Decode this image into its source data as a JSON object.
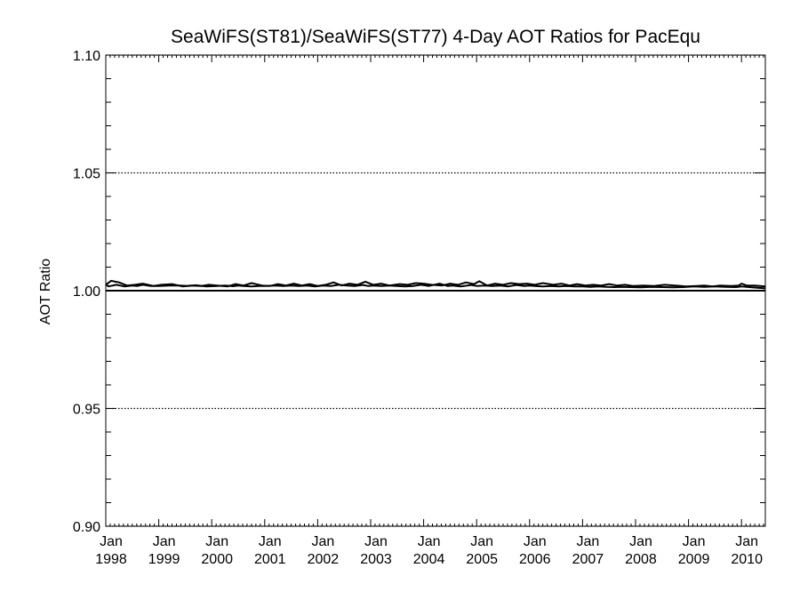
{
  "chart_data": {
    "type": "line",
    "title": "SeaWiFS(ST81)/SeaWiFS(ST77) 4-Day AOT Ratios for PacEqu",
    "xlabel": "",
    "ylabel": "AOT Ratio",
    "ylim": [
      0.9,
      1.1
    ],
    "yticks": [
      "0.90",
      "0.95",
      "1.00",
      "1.05",
      "1.10"
    ],
    "xticks": [
      {
        "line1": "Jan",
        "line2": "1998"
      },
      {
        "line1": "Jan",
        "line2": "1999"
      },
      {
        "line1": "Jan",
        "line2": "2000"
      },
      {
        "line1": "Jan",
        "line2": "2001"
      },
      {
        "line1": "Jan",
        "line2": "2002"
      },
      {
        "line1": "Jan",
        "line2": "2003"
      },
      {
        "line1": "Jan",
        "line2": "2004"
      },
      {
        "line1": "Jan",
        "line2": "2005"
      },
      {
        "line1": "Jan",
        "line2": "2006"
      },
      {
        "line1": "Jan",
        "line2": "2007"
      },
      {
        "line1": "Jan",
        "line2": "2008"
      },
      {
        "line1": "Jan",
        "line2": "2009"
      },
      {
        "line1": "Jan",
        "line2": "2010"
      }
    ],
    "xlim": [
      1998.0,
      2010.45
    ],
    "grid": "dotted horizontal at major ticks",
    "reference_line": 1.0,
    "series": [
      {
        "x": [
          1997.95,
          1998.05,
          1998.2,
          1998.35,
          1998.5,
          1998.6,
          1998.7,
          1998.85,
          1999.0,
          1999.2,
          1999.4,
          1999.55,
          1999.7,
          1999.9,
          2000.1,
          2000.25,
          2000.4,
          2000.5,
          2000.6,
          2000.75,
          2000.9,
          2001.0,
          2001.2,
          2001.35,
          2001.5,
          2001.65,
          2001.8,
          2001.95,
          2002.1,
          2002.25,
          2002.4,
          2002.55,
          2002.7,
          2002.85,
          2002.95,
          2003.05,
          2003.2,
          2003.35,
          2003.5,
          2003.65,
          2003.8,
          2003.95,
          2004.1,
          2004.3,
          2004.45,
          2004.55,
          2004.7,
          2004.9,
          2005.0,
          2005.15,
          2005.3,
          2005.45,
          2005.6,
          2005.75,
          2005.9,
          2006.0,
          2006.1,
          2006.25,
          2006.4,
          2006.55,
          2006.7,
          2006.85,
          2007.0,
          2007.15,
          2007.3,
          2007.45,
          2007.6,
          2007.75,
          2007.9,
          2008.1,
          2008.3,
          2008.5,
          2008.7,
          2008.9,
          2009.1,
          2009.3,
          2009.5,
          2009.7,
          2009.9,
          2010.0,
          2010.05,
          2010.15,
          2010.3,
          2010.45
        ],
        "values": [
          1.0028,
          1.0018,
          1.0025,
          1.0018,
          1.0022,
          1.002,
          1.0025,
          1.002,
          1.002,
          1.0022,
          1.0022,
          1.002,
          1.0023,
          1.0018,
          1.002,
          1.0022,
          1.0019,
          1.0022,
          1.002,
          1.0018,
          1.002,
          1.002,
          1.0022,
          1.002,
          1.0022,
          1.002,
          1.0022,
          1.0018,
          1.0022,
          1.002,
          1.0025,
          1.0022,
          1.002,
          1.0024,
          1.002,
          1.0022,
          1.002,
          1.0022,
          1.002,
          1.0018,
          1.002,
          1.0025,
          1.002,
          1.003,
          1.002,
          1.0022,
          1.0018,
          1.0024,
          1.002,
          1.0022,
          1.002,
          1.0022,
          1.0018,
          1.0024,
          1.002,
          1.0022,
          1.002,
          1.0018,
          1.002,
          1.0018,
          1.002,
          1.0018,
          1.0018,
          1.0016,
          1.0018,
          1.0016,
          1.0015,
          1.0016,
          1.0015,
          1.0014,
          1.0016,
          1.0015,
          1.0014,
          1.0015,
          1.0018,
          1.0016,
          1.0018,
          1.0016,
          1.0015,
          1.0018,
          1.0017,
          1.0015,
          1.0012,
          1.001
        ]
      },
      {
        "x": [
          1997.95,
          1998.1,
          1998.25,
          1998.4,
          1998.55,
          1998.7,
          1998.9,
          1999.05,
          1999.25,
          1999.45,
          1999.6,
          1999.8,
          1999.95,
          2000.1,
          2000.3,
          2000.45,
          2000.6,
          2000.75,
          2000.95,
          2001.1,
          2001.25,
          2001.4,
          2001.55,
          2001.7,
          2001.85,
          2002.0,
          2002.15,
          2002.3,
          2002.45,
          2002.6,
          2002.75,
          2002.9,
          2003.05,
          2003.2,
          2003.35,
          2003.55,
          2003.7,
          2003.85,
          2004.0,
          2004.15,
          2004.35,
          2004.5,
          2004.65,
          2004.8,
          2004.95,
          2005.05,
          2005.2,
          2005.35,
          2005.5,
          2005.65,
          2005.8,
          2005.95,
          2006.1,
          2006.25,
          2006.45,
          2006.6,
          2006.75,
          2006.9,
          2007.05,
          2007.2,
          2007.35,
          2007.5,
          2007.65,
          2007.8,
          2007.95,
          2008.15,
          2008.35,
          2008.55,
          2008.75,
          2008.95,
          2009.15,
          2009.3,
          2009.45,
          2009.6,
          2009.8,
          2009.95,
          2010.0,
          2010.1,
          2010.25,
          2010.45
        ],
        "values": [
          1.0025,
          1.0042,
          1.0035,
          1.0022,
          1.0025,
          1.003,
          1.002,
          1.0025,
          1.0028,
          1.0018,
          1.0022,
          1.002,
          1.0025,
          1.0022,
          1.0018,
          1.0028,
          1.0022,
          1.0032,
          1.0022,
          1.002,
          1.0028,
          1.0022,
          1.003,
          1.0022,
          1.0028,
          1.002,
          1.0025,
          1.0035,
          1.0022,
          1.003,
          1.0025,
          1.0038,
          1.0025,
          1.003,
          1.0022,
          1.0028,
          1.0025,
          1.0032,
          1.003,
          1.0025,
          1.0022,
          1.003,
          1.0025,
          1.0035,
          1.0028,
          1.004,
          1.0022,
          1.003,
          1.0025,
          1.0032,
          1.0028,
          1.003,
          1.0025,
          1.0032,
          1.0025,
          1.003,
          1.0022,
          1.0028,
          1.0022,
          1.0025,
          1.0022,
          1.0028,
          1.0022,
          1.0025,
          1.002,
          1.0022,
          1.002,
          1.0025,
          1.0022,
          1.0018,
          1.002,
          1.0022,
          1.0018,
          1.0022,
          1.002,
          1.0022,
          1.003,
          1.0022,
          1.0022,
          1.0018
        ]
      }
    ]
  }
}
